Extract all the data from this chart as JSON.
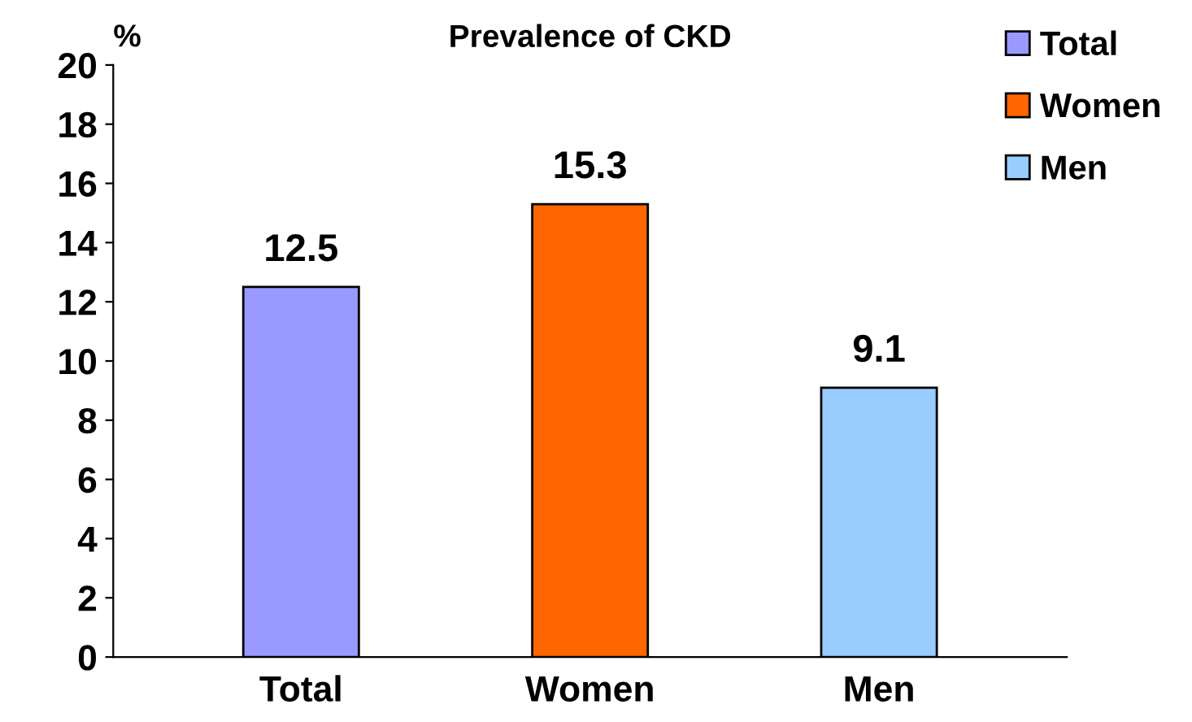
{
  "chart_data": {
    "type": "bar",
    "title": "Prevalence of CKD",
    "ylabel": "%",
    "categories": [
      "Total",
      "Women",
      "Men"
    ],
    "series": [
      {
        "name": "Total",
        "color": "#9999ff",
        "values": [
          12.5,
          null,
          null
        ]
      },
      {
        "name": "Women",
        "color": "#ff6600",
        "values": [
          null,
          15.3,
          null
        ]
      },
      {
        "name": "Men",
        "color": "#99ccff",
        "values": [
          null,
          null,
          9.1
        ]
      }
    ],
    "ylim": [
      0,
      20
    ],
    "yticks": [
      0,
      2,
      4,
      6,
      8,
      10,
      12,
      14,
      16,
      18,
      20
    ],
    "data_labels": true,
    "legend": "top right"
  }
}
